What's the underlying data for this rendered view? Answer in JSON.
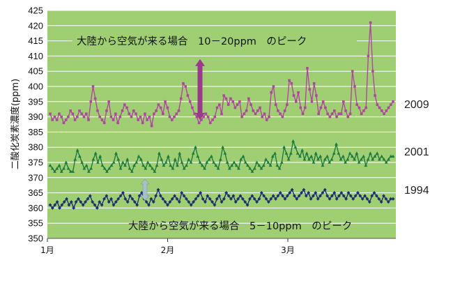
{
  "chart_data": {
    "type": "line",
    "ylabel": "二酸化炭素濃度(ppm)",
    "ylim": [
      350,
      425
    ],
    "yticks": [
      350,
      355,
      360,
      365,
      370,
      375,
      380,
      385,
      390,
      395,
      400,
      405,
      410,
      415,
      420,
      425
    ],
    "x_ticks": [
      "1月",
      "2月",
      "3月"
    ],
    "grid": true,
    "background": "#9fcf72",
    "series": [
      {
        "name": "2009",
        "color": "#b0479e",
        "marker": "square",
        "values": [
          391,
          389,
          390,
          389,
          391,
          390,
          388,
          389,
          390,
          392,
          391,
          389,
          390,
          392,
          391,
          390,
          391,
          389,
          395,
          400,
          396,
          392,
          390,
          389,
          388,
          392,
          395,
          390,
          389,
          391,
          388,
          390,
          392,
          394,
          393,
          391,
          390,
          392,
          391,
          389,
          390,
          388,
          391,
          389,
          390,
          387,
          391,
          392,
          394,
          393,
          391,
          395,
          393,
          390,
          389,
          390,
          391,
          392,
          396,
          401,
          400,
          397,
          395,
          393,
          391,
          390,
          388,
          389,
          390,
          391,
          390,
          388,
          389,
          390,
          393,
          394,
          391,
          397,
          396,
          394,
          396,
          395,
          393,
          394,
          395,
          390,
          391,
          392,
          396,
          394,
          392,
          391,
          392,
          393,
          390,
          391,
          389,
          390,
          398,
          400,
          394,
          392,
          391,
          390,
          392,
          394,
          402,
          401,
          397,
          395,
          398,
          393,
          391,
          393,
          406,
          399,
          395,
          401,
          397,
          391,
          393,
          395,
          393,
          391,
          390,
          391,
          392,
          390,
          391,
          391,
          395,
          392,
          390,
          391,
          405,
          400,
          394,
          393,
          391,
          392,
          393,
          410,
          421,
          405,
          397,
          394,
          393,
          392,
          391,
          392,
          393,
          394,
          395
        ],
        "label": "2009"
      },
      {
        "name": "2001",
        "color": "#1f7a3e",
        "marker": "triangle",
        "values": [
          374,
          373,
          372,
          373,
          374,
          372,
          373,
          375,
          373,
          372,
          372,
          376,
          379,
          377,
          375,
          373,
          374,
          372,
          373,
          376,
          378,
          375,
          377,
          374,
          373,
          372,
          373,
          374,
          375,
          378,
          376,
          373,
          375,
          374,
          376,
          373,
          372,
          374,
          375,
          377,
          376,
          374,
          373,
          375,
          374,
          373,
          372,
          374,
          378,
          376,
          374,
          375,
          377,
          374,
          373,
          376,
          374,
          378,
          375,
          373,
          374,
          376,
          375,
          378,
          380,
          377,
          375,
          374,
          373,
          375,
          376,
          377,
          375,
          374,
          373,
          376,
          380,
          378,
          375,
          373,
          374,
          375,
          374,
          373,
          376,
          377,
          375,
          374,
          373,
          372,
          373,
          375,
          374,
          373,
          374,
          376,
          375,
          374,
          377,
          378,
          374,
          373,
          375,
          380,
          378,
          376,
          378,
          382,
          380,
          378,
          377,
          379,
          376,
          378,
          376,
          377,
          375,
          378,
          376,
          377,
          374,
          376,
          377,
          375,
          376,
          378,
          381,
          378,
          376,
          377,
          375,
          376,
          378,
          377,
          376,
          378,
          375,
          376,
          377,
          374,
          376,
          378,
          376,
          377,
          378,
          376,
          377,
          376,
          375,
          376,
          377,
          377
        ],
        "label": "2001"
      },
      {
        "name": "1994",
        "color": "#1f2f6e",
        "marker": "diamond",
        "values": [
          361,
          360,
          361,
          362,
          360,
          361,
          362,
          363,
          361,
          362,
          360,
          362,
          363,
          362,
          361,
          362,
          363,
          364,
          362,
          361,
          360,
          362,
          361,
          363,
          364,
          362,
          363,
          361,
          362,
          363,
          364,
          365,
          363,
          362,
          364,
          363,
          362,
          361,
          364,
          365,
          363,
          362,
          361,
          363,
          362,
          364,
          366,
          364,
          363,
          362,
          361,
          362,
          363,
          364,
          363,
          362,
          365,
          364,
          363,
          362,
          361,
          362,
          363,
          364,
          365,
          363,
          362,
          364,
          363,
          362,
          361,
          363,
          364,
          362,
          363,
          365,
          364,
          363,
          364,
          362,
          363,
          364,
          363,
          362,
          361,
          363,
          364,
          363,
          362,
          363,
          365,
          364,
          363,
          362,
          363,
          364,
          363,
          364,
          365,
          364,
          363,
          364,
          365,
          366,
          364,
          363,
          364,
          365,
          366,
          364,
          365,
          363,
          364,
          365,
          363,
          364,
          365,
          366,
          364,
          363,
          364,
          365,
          363,
          364,
          365,
          364,
          363,
          365,
          364,
          363,
          364,
          365,
          364,
          363,
          364,
          363,
          362,
          364,
          365,
          364,
          363,
          362,
          364,
          363,
          362,
          363,
          363
        ],
        "label": "1994"
      }
    ],
    "annotations": {
      "upper": "大陸から空気が来る場合　10－20ppm　のピーク",
      "lower": "大陸から空気が来る場合　5－10ppm　のピーク"
    },
    "arrow_colors": {
      "upper": "#9b3a8a",
      "lower": "#a9c1c6"
    }
  }
}
